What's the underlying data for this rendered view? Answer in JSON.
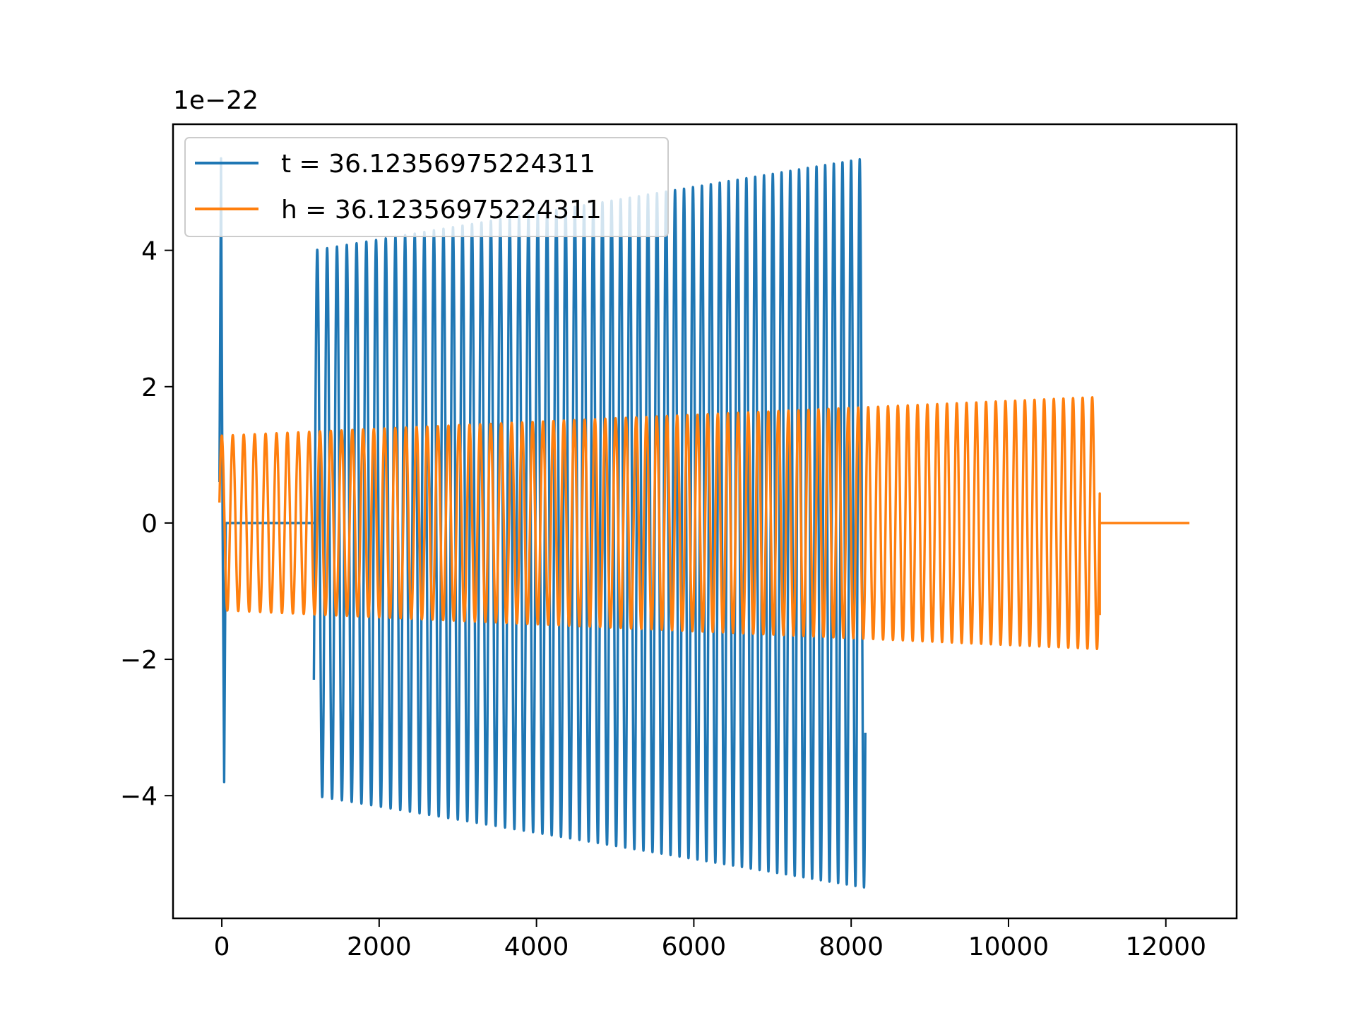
{
  "chart_data": {
    "type": "line",
    "title": "",
    "xlabel": "",
    "ylabel": "",
    "y_offset_text": "1e−22",
    "xlim": [
      -620,
      12900
    ],
    "ylim": [
      -5.8,
      5.85
    ],
    "y_scale_factor": 1e-22,
    "x_ticks": [
      0,
      2000,
      4000,
      6000,
      8000,
      10000,
      12000
    ],
    "x_tick_labels": [
      "0",
      "2000",
      "4000",
      "6000",
      "8000",
      "10000",
      "12000"
    ],
    "y_ticks": [
      -4,
      -2,
      0,
      2,
      4
    ],
    "y_tick_labels": [
      "−4",
      "−2",
      "0",
      "2",
      "4"
    ],
    "grid": false,
    "legend_position": "upper-left",
    "series": [
      {
        "name": "t = 36.12356975224311",
        "color": "#1f77b4",
        "segments": [
          {
            "x": [
              -30,
              -10,
              10,
              30,
              50
            ],
            "y": [
              0.6,
              5.35,
              0.0,
              -3.8,
              0.0
            ]
          },
          {
            "x": [
              50,
              1170
            ],
            "y": [
              0.0,
              0.0
            ]
          }
        ],
        "chirp": {
          "x_start": 1170,
          "x_end": 8180,
          "amp_start": 4.0,
          "amp_end": 5.35,
          "cycles": 60,
          "start_value": -2.3
        }
      },
      {
        "name": "h = 36.12356975224311",
        "color": "#ff7f0e",
        "chirp": {
          "x_start": -30,
          "x_end": 11160,
          "amp_start": 1.28,
          "amp_end": 1.85,
          "cycles": 86,
          "start_value": 0.3,
          "end_value": -1.35
        },
        "tail": {
          "x": [
            11160,
            12300
          ],
          "y": [
            0.0,
            0.0
          ]
        }
      }
    ]
  }
}
